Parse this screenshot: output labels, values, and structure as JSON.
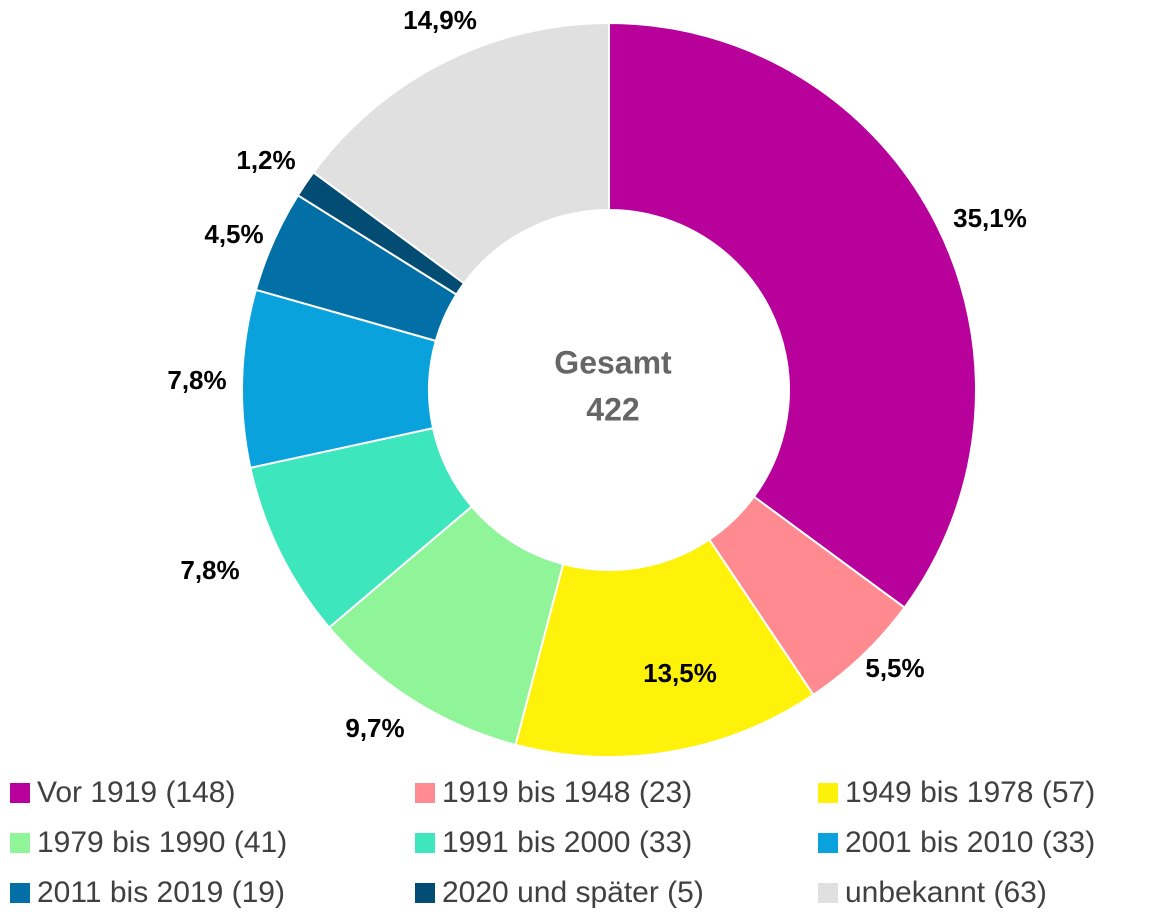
{
  "chart_data": {
    "type": "donut",
    "center_title": "Gesamt",
    "center_value": 422,
    "categories": [
      "Vor 1919 (148)",
      "1919 bis 1948 (23)",
      "1949 bis 1978 (57)",
      "1979 bis 1990 (41)",
      "1991 bis 2000 (33)",
      "2001 bis 2010 (33)",
      "2011 bis 2019 (19)",
      "2020 und später (5)",
      "unbekannt (63)"
    ],
    "values": [
      35.1,
      5.5,
      13.5,
      9.7,
      7.8,
      7.8,
      4.5,
      1.2,
      14.9
    ],
    "value_labels": [
      "35,1%",
      "5,5%",
      "13,5%",
      "9,7%",
      "7,8%",
      "7,8%",
      "4,5%",
      "1,2%",
      "14,9%"
    ],
    "colors": [
      "#b8009b",
      "#ff8a8f",
      "#fff20a",
      "#90f598",
      "#3de6bc",
      "#0aa2dc",
      "#0270a6",
      "#034c74",
      "#e0e0e0"
    ],
    "legend": "bottom"
  }
}
